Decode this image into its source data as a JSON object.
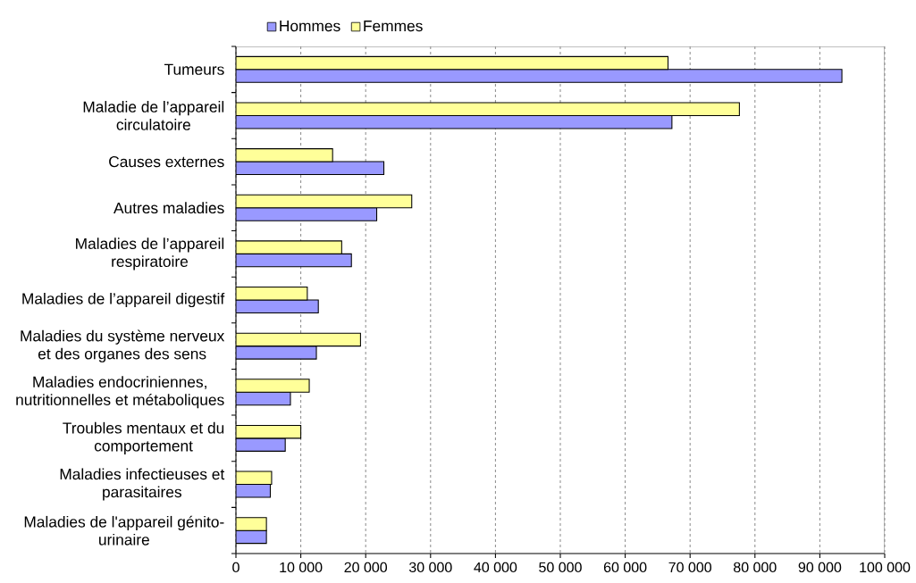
{
  "chart_data": {
    "type": "bar",
    "orientation": "horizontal",
    "categories": [
      "Tumeurs",
      "Maladie de l’appareil circulatoire",
      "Causes externes",
      "Autres maladies",
      "Maladies de l’appareil respiratoire",
      "Maladies de l’appareil digestif",
      "Maladies du système nerveux et des organes des sens",
      "Maladies endocriniennes, nutritionnelles et métaboliques",
      "Troubles mentaux et du comportement",
      "Maladies infectieuses et parasitaires",
      "Maladies de l'appareil génito-urinaire"
    ],
    "series": [
      {
        "name": "Hommes",
        "color": "#9999ff",
        "values": [
          93400,
          67200,
          22800,
          21700,
          17800,
          12700,
          12400,
          8400,
          7600,
          5300,
          4700
        ]
      },
      {
        "name": "Femmes",
        "color": "#ffff99",
        "values": [
          66600,
          77600,
          14900,
          27100,
          16300,
          11000,
          19200,
          11300,
          10000,
          5500,
          4700
        ]
      }
    ],
    "xlim": [
      0,
      100000
    ],
    "xticks": [
      0,
      {
        "value": 10000,
        "label": "10 000"
      },
      {
        "value": 20000,
        "label": "20 000"
      },
      {
        "value": 30000,
        "label": "30 000"
      },
      {
        "value": 40000,
        "label": "40 000"
      },
      {
        "value": 50000,
        "label": "50 000"
      },
      {
        "value": 60000,
        "label": "60 000"
      },
      {
        "value": 70000,
        "label": "70 000"
      },
      {
        "value": 80000,
        "label": "80 000"
      },
      {
        "value": 90000,
        "label": "90 000"
      },
      {
        "value": 100000,
        "label": "100 000"
      }
    ],
    "grid": "x",
    "legend": "top"
  }
}
